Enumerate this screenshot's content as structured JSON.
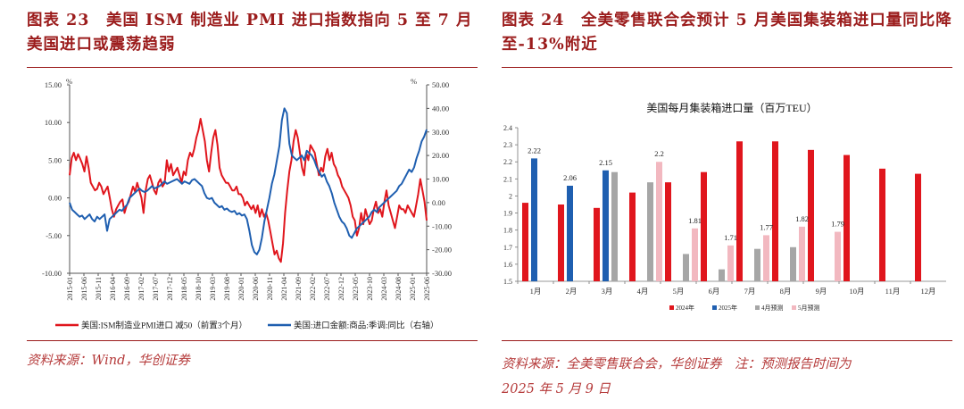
{
  "left_panel": {
    "title": "图表 23　美国 ISM 制造业 PMI 进口指数指向 5 至 7 月美国进口或震荡趋弱",
    "source": "资料来源：Wind，华创证券",
    "chart_data": {
      "type": "line",
      "title": "",
      "y_left_unit": "%",
      "y_right_unit": "%",
      "ylim_left": [
        -10,
        15
      ],
      "ylim_right": [
        -30,
        50
      ],
      "yticks_left": [
        "15.00",
        "10.00",
        "5.00",
        "0.00",
        "-5.00",
        "-10.00"
      ],
      "yticks_right": [
        "50.00",
        "40.00",
        "30.00",
        "20.00",
        "10.00",
        "0.00",
        "-10.00",
        "-20.00",
        "-30.00"
      ],
      "xticks": [
        "2015-01",
        "2015-06",
        "2015-11",
        "2016-04",
        "2016-09",
        "2017-02",
        "2017-07",
        "2017-12",
        "2018-05",
        "2018-10",
        "2019-03",
        "2019-08",
        "2020-01",
        "2020-06",
        "2020-11",
        "2021-04",
        "2021-09",
        "2022-02",
        "2022-07",
        "2022-12",
        "2023-05",
        "2023-10",
        "2024-03",
        "2024-08",
        "2025-01",
        "2025-06"
      ],
      "series": [
        {
          "name": "美国:ISM制造业PMI进口 减50（前置3个月）",
          "color": "#e0161d",
          "axis": "left",
          "values": [
            3.0,
            5.3,
            6.0,
            5.0,
            5.8,
            5.2,
            4.5,
            3.5,
            5.5,
            4.0,
            2.0,
            1.5,
            1.0,
            1.2,
            2.0,
            1.5,
            0.5,
            1.0,
            1.5,
            0.0,
            -1.5,
            -2.5,
            -1.5,
            -1.0,
            -0.5,
            -0.2,
            -2.0,
            -1.0,
            -0.5,
            0.5,
            1.5,
            0.8,
            2.0,
            1.0,
            0.0,
            -2.0,
            1.0,
            2.5,
            3.0,
            2.0,
            1.0,
            0.5,
            2.0,
            2.5,
            1.5,
            2.0,
            5.0,
            3.5,
            4.5,
            3.0,
            3.5,
            4.0,
            3.0,
            2.0,
            3.5,
            3.0,
            5.0,
            6.0,
            5.5,
            6.5,
            8.0,
            9.0,
            10.5,
            9.0,
            7.5,
            5.0,
            3.5,
            6.0,
            8.0,
            9.0,
            7.0,
            4.0,
            3.0,
            2.5,
            2.0,
            2.0,
            1.5,
            1.0,
            1.0,
            1.5,
            0.5,
            0.5,
            0.0,
            -1.0,
            -0.5,
            -1.0,
            -1.5,
            -1.0,
            -2.0,
            -1.0,
            -2.5,
            -1.5,
            -2.5,
            -2.0,
            -3.0,
            -4.5,
            -6.0,
            -7.5,
            -7.0,
            -8.0,
            -8.5,
            -6.0,
            -2.0,
            1.0,
            3.5,
            5.0,
            7.5,
            9.0,
            8.0,
            6.0,
            4.0,
            3.0,
            6.0,
            5.0,
            7.0,
            6.5,
            6.0,
            4.5,
            3.0,
            4.0,
            3.5,
            5.5,
            6.5,
            5.0,
            6.0,
            4.5,
            4.0,
            3.0,
            2.5,
            1.5,
            1.0,
            0.5,
            0.0,
            -1.0,
            -2.5,
            -3.0,
            -5.0,
            -4.0,
            -2.0,
            -3.5,
            -1.5,
            -2.5,
            -3.5,
            -3.0,
            -1.5,
            -0.5,
            -2.0,
            -1.5,
            -2.5,
            -0.5,
            1.0,
            -1.0,
            -2.0,
            -3.0,
            -4.0,
            -2.5,
            -1.0,
            -1.5,
            -1.5,
            -2.0,
            -1.0,
            -1.5,
            -2.0,
            -2.5,
            -1.0,
            0.5,
            2.5,
            1.0,
            -0.5,
            -3.0
          ]
        },
        {
          "name": "美国:进口金额:商品:季调:同比（右轴）",
          "color": "#1f5fb0",
          "axis": "right",
          "values": [
            0.0,
            -3.0,
            -4.0,
            -5.0,
            -6.0,
            -5.5,
            -7.0,
            -6.0,
            -5.0,
            -7.0,
            -8.0,
            -6.0,
            -7.0,
            -6.0,
            -5.0,
            -12.0,
            -7.0,
            -6.0,
            -5.0,
            -4.0,
            -3.0,
            -3.5,
            -2.0,
            -1.0,
            2.0,
            3.0,
            4.0,
            5.0,
            6.0,
            5.0,
            4.5,
            5.0,
            6.0,
            7.0,
            6.0,
            6.5,
            7.0,
            8.0,
            9.0,
            8.0,
            8.5,
            9.0,
            9.5,
            10.0,
            9.0,
            8.0,
            9.0,
            8.5,
            8.0,
            9.5,
            10.0,
            9.0,
            8.0,
            7.0,
            4.0,
            2.0,
            1.5,
            2.0,
            0.0,
            -1.0,
            -2.0,
            -1.5,
            -3.0,
            -2.5,
            -3.5,
            -4.0,
            -3.5,
            -5.0,
            -4.5,
            -5.5,
            -5.0,
            -7.0,
            -12.0,
            -18.0,
            -21.0,
            -22.0,
            -20.0,
            -15.0,
            -8.0,
            -3.0,
            2.0,
            8.0,
            12.0,
            18.0,
            24.0,
            35.0,
            40.0,
            38.0,
            25.0,
            20.0,
            19.0,
            18.0,
            19.0,
            20.0,
            18.0,
            22.0,
            21.0,
            20.0,
            18.0,
            15.0,
            13.0,
            11.0,
            12.0,
            9.0,
            7.0,
            4.0,
            0.0,
            -3.0,
            -6.0,
            -8.0,
            -9.0,
            -11.0,
            -14.0,
            -15.0,
            -13.0,
            -11.0,
            -10.0,
            -9.0,
            -8.0,
            -7.0,
            -6.0,
            -4.0,
            -3.0,
            -4.0,
            -2.0,
            -1.0,
            0.0,
            1.0,
            2.0,
            3.0,
            4.0,
            5.0,
            7.0,
            8.0,
            10.0,
            12.0,
            14.0,
            13.0,
            15.0,
            19.0,
            22.0,
            26.0,
            28.0,
            31.0
          ]
        }
      ]
    }
  },
  "right_panel": {
    "title": "图表 24　全美零售联合会预计 5 月美国集装箱进口量同比降至-13%附近",
    "source_line1": "资料来源：全美零售联合会，华创证券　注：预测报告时间为",
    "source_line2": "2025 年 5 月 9 日",
    "chart_data": {
      "type": "bar",
      "title": "美国每月集装箱进口量（百万TEU）",
      "ylim": [
        1.5,
        2.4
      ],
      "yticks": [
        "2.4",
        "2.3",
        "2.2",
        "2.1",
        "2",
        "1.9",
        "1.8",
        "1.7",
        "1.6",
        "1.5"
      ],
      "categories": [
        "1月",
        "2月",
        "3月",
        "4月",
        "5月",
        "6月",
        "7月",
        "8月",
        "9月",
        "10月",
        "11月",
        "12月"
      ],
      "series": [
        {
          "name": "2024年",
          "color": "#e0161d",
          "values": [
            1.96,
            1.95,
            1.93,
            2.02,
            2.08,
            2.14,
            2.32,
            2.32,
            2.27,
            2.24,
            2.16,
            2.13
          ]
        },
        {
          "name": "2025年",
          "color": "#1f5fb0",
          "values": [
            2.22,
            2.06,
            2.15,
            null,
            null,
            null,
            null,
            null,
            null,
            null,
            null,
            null
          ]
        },
        {
          "name": "4月预测",
          "color": "#a6a6a6",
          "values": [
            null,
            null,
            2.14,
            2.08,
            1.66,
            1.57,
            1.69,
            1.7,
            null,
            null,
            null,
            null
          ]
        },
        {
          "name": "5月预测",
          "color": "#f2b8c0",
          "values": [
            null,
            null,
            null,
            2.2,
            1.81,
            1.71,
            1.77,
            1.82,
            1.79,
            null,
            null,
            null
          ]
        }
      ],
      "data_labels": [
        {
          "series": 1,
          "index": 0,
          "text": "2.22"
        },
        {
          "series": 1,
          "index": 1,
          "text": "2.06"
        },
        {
          "series": 1,
          "index": 2,
          "text": "2.15"
        },
        {
          "series": 3,
          "index": 3,
          "text": "2.2"
        },
        {
          "series": 3,
          "index": 4,
          "text": "1.81"
        },
        {
          "series": 3,
          "index": 5,
          "text": "1.71"
        },
        {
          "series": 3,
          "index": 6,
          "text": "1.77"
        },
        {
          "series": 3,
          "index": 7,
          "text": "1.82"
        },
        {
          "series": 3,
          "index": 8,
          "text": "1.79"
        }
      ]
    }
  }
}
